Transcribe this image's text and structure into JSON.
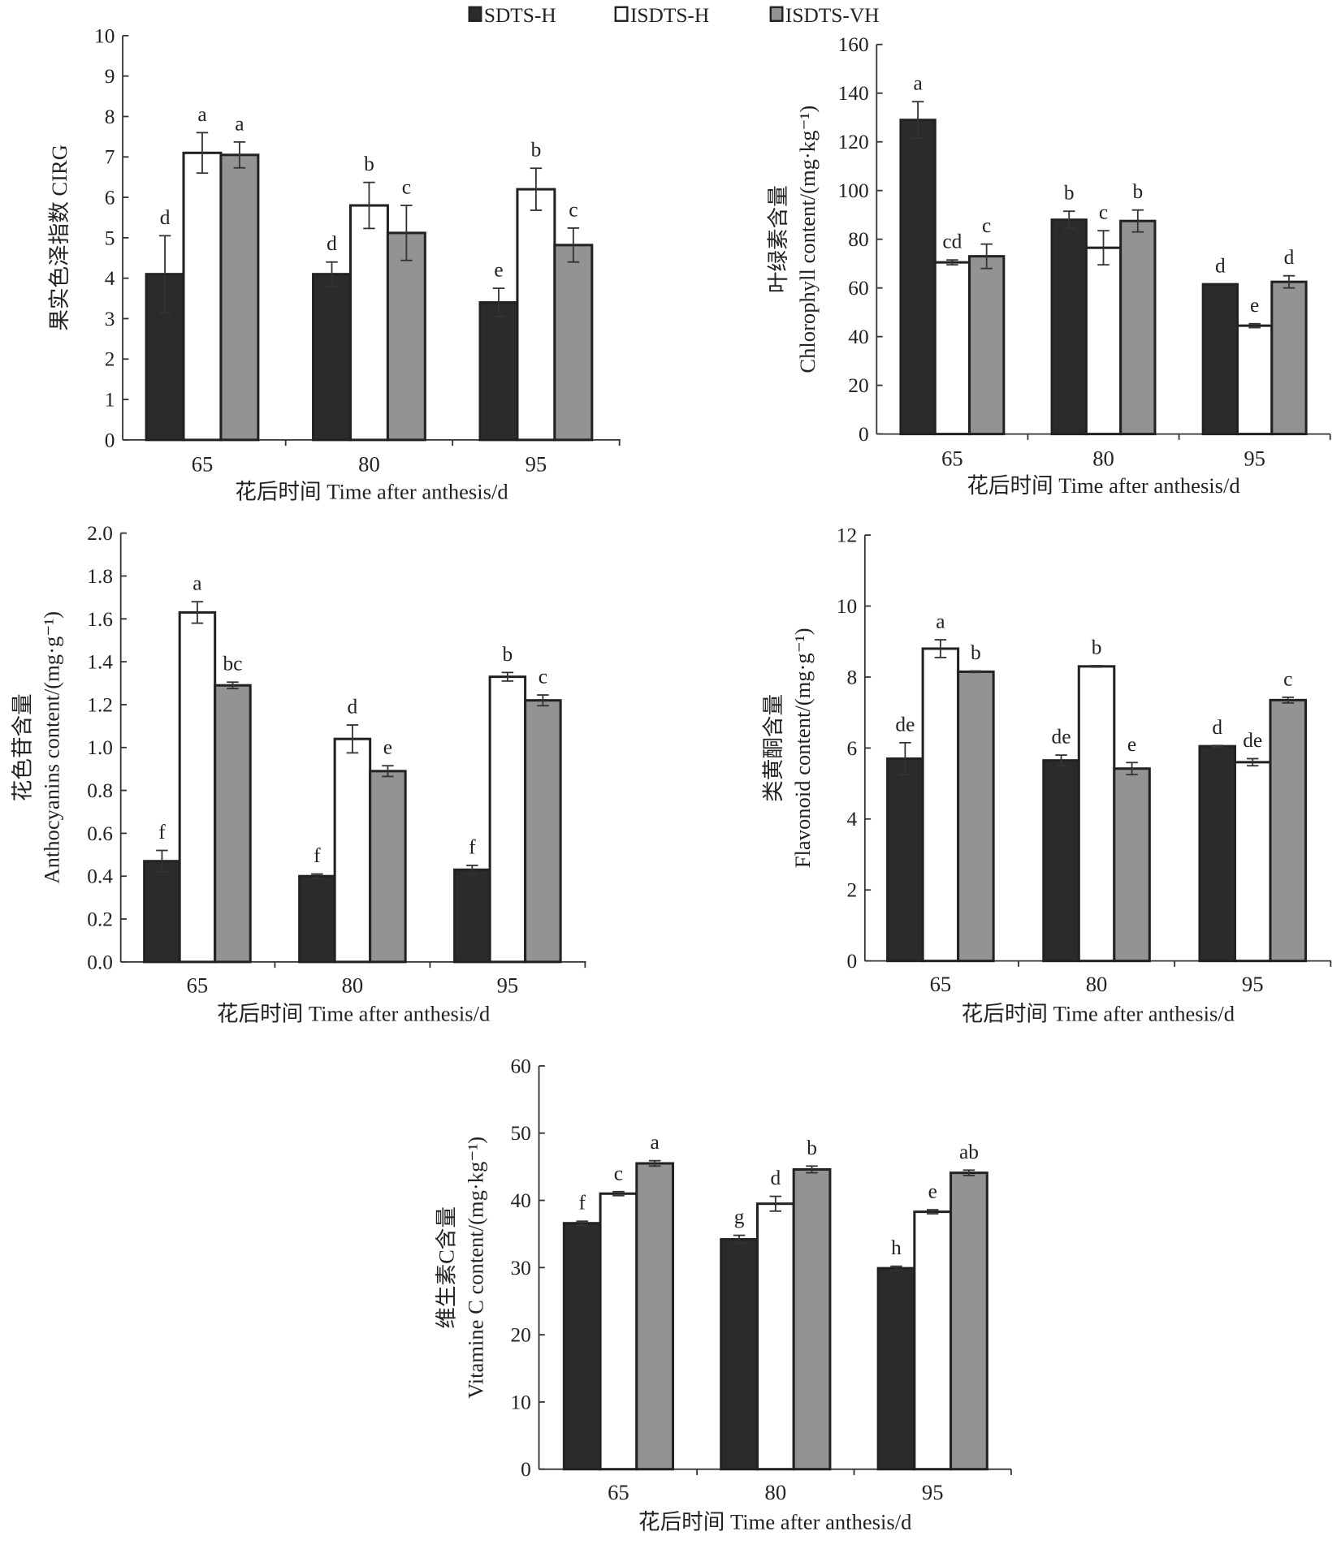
{
  "legend": {
    "placement": "top-center",
    "entries": [
      {
        "name": "SDTS-H",
        "color": "#2b2b2b"
      },
      {
        "name": "ISDTS-H",
        "color": "#ffffff"
      },
      {
        "name": "ISDTS-VH",
        "color": "#939393"
      }
    ]
  },
  "chart_data": [
    {
      "type": "bar",
      "xlabel": "花后时间 Time after anthesis/d",
      "ylabel": [
        "果实色泽指数 CIRG"
      ],
      "categories": [
        "65",
        "80",
        "95"
      ],
      "ylim": [
        0,
        10
      ],
      "yticks": [
        "0",
        "1",
        "2",
        "3",
        "4",
        "5",
        "6",
        "7",
        "8",
        "9",
        "10"
      ],
      "series": [
        {
          "name": "SDTS-H",
          "values": [
            4.1,
            4.1,
            3.4
          ],
          "errors": [
            0.95,
            0.3,
            0.35
          ],
          "letters": [
            "d",
            "d",
            "e"
          ]
        },
        {
          "name": "ISDTS-H",
          "values": [
            7.1,
            5.8,
            6.2
          ],
          "errors": [
            0.5,
            0.57,
            0.52
          ],
          "letters": [
            "a",
            "b",
            "b"
          ]
        },
        {
          "name": "ISDTS-VH",
          "values": [
            7.05,
            5.12,
            4.82
          ],
          "errors": [
            0.32,
            0.68,
            0.42
          ],
          "letters": [
            "a",
            "c",
            "c"
          ]
        }
      ]
    },
    {
      "type": "bar",
      "xlabel": "花后时间 Time after anthesis/d",
      "ylabel": [
        "叶绿素含量",
        "Chlorophyll content/(mg·kg⁻¹)"
      ],
      "categories": [
        "65",
        "80",
        "95"
      ],
      "ylim": [
        0,
        160
      ],
      "yticks": [
        "0",
        "20",
        "40",
        "60",
        "80",
        "100",
        "120",
        "140",
        "160"
      ],
      "series": [
        {
          "name": "SDTS-H",
          "values": [
            129,
            88,
            61.5
          ],
          "errors": [
            7.5,
            3.5,
            0
          ],
          "letters": [
            "a",
            "b",
            "d"
          ]
        },
        {
          "name": "ISDTS-H",
          "values": [
            70.5,
            76.5,
            44.5
          ],
          "errors": [
            1,
            7,
            0.8
          ],
          "letters": [
            "cd",
            "c",
            "e"
          ]
        },
        {
          "name": "ISDTS-VH",
          "values": [
            73,
            87.5,
            62.5
          ],
          "errors": [
            5,
            4.5,
            2.5
          ],
          "letters": [
            "c",
            "b",
            "d"
          ]
        }
      ]
    },
    {
      "type": "bar",
      "xlabel": "花后时间 Time after anthesis/d",
      "ylabel": [
        "花色苷含量",
        "Anthocyanins content/(mg·g⁻¹)"
      ],
      "categories": [
        "65",
        "80",
        "95"
      ],
      "ylim": [
        0,
        2.0
      ],
      "yticks": [
        "0.0",
        "0.2",
        "0.4",
        "0.6",
        "0.8",
        "1.0",
        "1.2",
        "1.4",
        "1.6",
        "1.8",
        "2.0"
      ],
      "series": [
        {
          "name": "SDTS-H",
          "values": [
            0.47,
            0.4,
            0.43
          ],
          "errors": [
            0.05,
            0.01,
            0.02
          ],
          "letters": [
            "f",
            "f",
            "f"
          ]
        },
        {
          "name": "ISDTS-H",
          "values": [
            1.63,
            1.04,
            1.33
          ],
          "errors": [
            0.05,
            0.065,
            0.02
          ],
          "letters": [
            "a",
            "d",
            "b"
          ]
        },
        {
          "name": "ISDTS-VH",
          "values": [
            1.29,
            0.89,
            1.22
          ],
          "errors": [
            0.015,
            0.025,
            0.025
          ],
          "letters": [
            "bc",
            "e",
            "c"
          ]
        }
      ]
    },
    {
      "type": "bar",
      "xlabel": "花后时间 Time after anthesis/d",
      "ylabel": [
        "类黄酮含量",
        "Flavonoid content/(mg·g⁻¹)"
      ],
      "categories": [
        "65",
        "80",
        "95"
      ],
      "ylim": [
        0,
        12
      ],
      "yticks": [
        "0",
        "2",
        "4",
        "6",
        "8",
        "10",
        "12"
      ],
      "series": [
        {
          "name": "SDTS-H",
          "values": [
            5.7,
            5.65,
            6.05
          ],
          "errors": [
            0.45,
            0.15,
            0.02
          ],
          "letters": [
            "de",
            "de",
            "d"
          ]
        },
        {
          "name": "ISDTS-H",
          "values": [
            8.8,
            8.3,
            5.6
          ],
          "errors": [
            0.25,
            0.02,
            0.1
          ],
          "letters": [
            "a",
            "b",
            "de"
          ]
        },
        {
          "name": "ISDTS-VH",
          "values": [
            8.15,
            5.42,
            7.35
          ],
          "errors": [
            0.02,
            0.17,
            0.08
          ],
          "letters": [
            "b",
            "e",
            "c"
          ]
        }
      ]
    },
    {
      "type": "bar",
      "xlabel": "花后时间 Time after anthesis/d",
      "ylabel": [
        "维生素C含量",
        "Vitamine C content/(mg·kg⁻¹)"
      ],
      "categories": [
        "65",
        "80",
        "95"
      ],
      "ylim": [
        0,
        60
      ],
      "yticks": [
        "0",
        "10",
        "20",
        "30",
        "40",
        "50",
        "60"
      ],
      "series": [
        {
          "name": "SDTS-H",
          "values": [
            36.6,
            34.2,
            29.9
          ],
          "errors": [
            0.3,
            0.6,
            0.3
          ],
          "letters": [
            "f",
            "g",
            "h"
          ]
        },
        {
          "name": "ISDTS-H",
          "values": [
            41,
            39.5,
            38.3
          ],
          "errors": [
            0.3,
            1.1,
            0.3
          ],
          "letters": [
            "c",
            "d",
            "e"
          ]
        },
        {
          "name": "ISDTS-VH",
          "values": [
            45.5,
            44.6,
            44.1
          ],
          "errors": [
            0.4,
            0.5,
            0.4
          ],
          "letters": [
            "a",
            "b",
            "ab"
          ]
        }
      ]
    }
  ]
}
